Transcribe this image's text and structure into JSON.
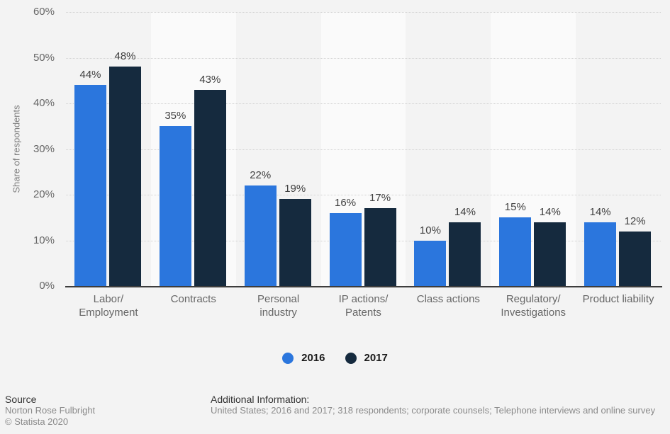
{
  "chart_data": {
    "type": "bar",
    "title": "",
    "xlabel": "",
    "ylabel": "Share of respondents",
    "ylim": [
      0,
      60
    ],
    "grid": "horizontal-dotted",
    "legend_position": "bottom",
    "value_suffix": "%",
    "categories": [
      "Labor/\nEmployment",
      "Contracts",
      "Personal\nindustry",
      "IP actions/\nPatents",
      "Class actions",
      "Regulatory/\nInvestigations",
      "Product liability"
    ],
    "series": [
      {
        "name": "2016",
        "color": "#2b76dd",
        "values": [
          44,
          35,
          22,
          16,
          10,
          15,
          14
        ]
      },
      {
        "name": "2017",
        "color": "#152a3e",
        "values": [
          48,
          43,
          19,
          17,
          14,
          14,
          12
        ]
      }
    ],
    "yticks": [
      {
        "v": 0,
        "label": "0%"
      },
      {
        "v": 10,
        "label": "10%"
      },
      {
        "v": 20,
        "label": "20%"
      },
      {
        "v": 30,
        "label": "30%"
      },
      {
        "v": 40,
        "label": "40%"
      },
      {
        "v": 50,
        "label": "50%"
      },
      {
        "v": 60,
        "label": "60%"
      }
    ]
  },
  "footer": {
    "source_label": "Source",
    "source_name": "Norton Rose Fulbright",
    "copyright": "© Statista 2020",
    "additional_info_label": "Additional Information:",
    "additional_info_text": "United States; 2016 and 2017; 318 respondents; corporate counsels; Telephone interviews and online survey"
  }
}
